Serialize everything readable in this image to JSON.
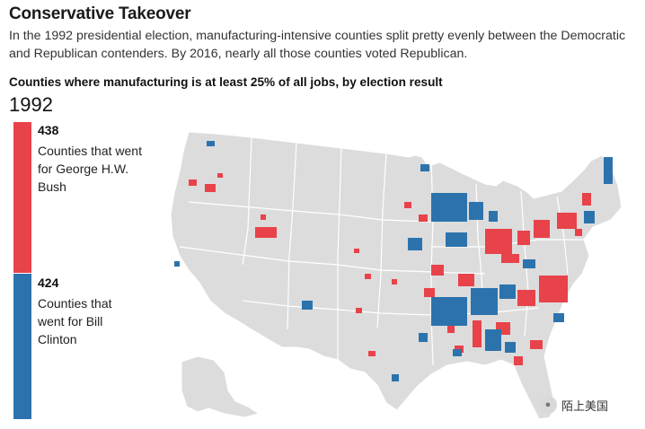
{
  "header": {
    "title": "Conservative Takeover",
    "subtitle": "In the 1992 presidential election, manufacturing-intensive counties split pretty evenly between the Democratic and Republican contenders. By 2016, nearly all those counties voted Republican.",
    "chart_label": "Counties where manufacturing is at least 25% of all jobs, by election result",
    "year": "1992"
  },
  "legend": {
    "bush": {
      "count": "438",
      "label": "Counties that went for George H.W. Bush",
      "line1": "Counties that went",
      "line2": "for George H.W.",
      "line3": "Bush"
    },
    "clinton": {
      "count": "424",
      "label": "Counties that went for Bill Clinton",
      "line1": "Counties that",
      "line2": "went for Bill",
      "line3": "Clinton"
    }
  },
  "colors": {
    "bush": "#e8424a",
    "clinton": "#2c73ad",
    "land": "#dcdcdc",
    "borders": "#ffffff"
  },
  "watermark": {
    "text": "陌上美国",
    "icon": "wechat-icon"
  },
  "chart_data": {
    "type": "map",
    "title": "Counties where manufacturing is at least 25% of all jobs, by election result",
    "year": "1992",
    "series": [
      {
        "name": "Counties that went for George H.W. Bush",
        "value": 438
      },
      {
        "name": "Counties that went for Bill Clinton",
        "value": 424
      }
    ]
  }
}
